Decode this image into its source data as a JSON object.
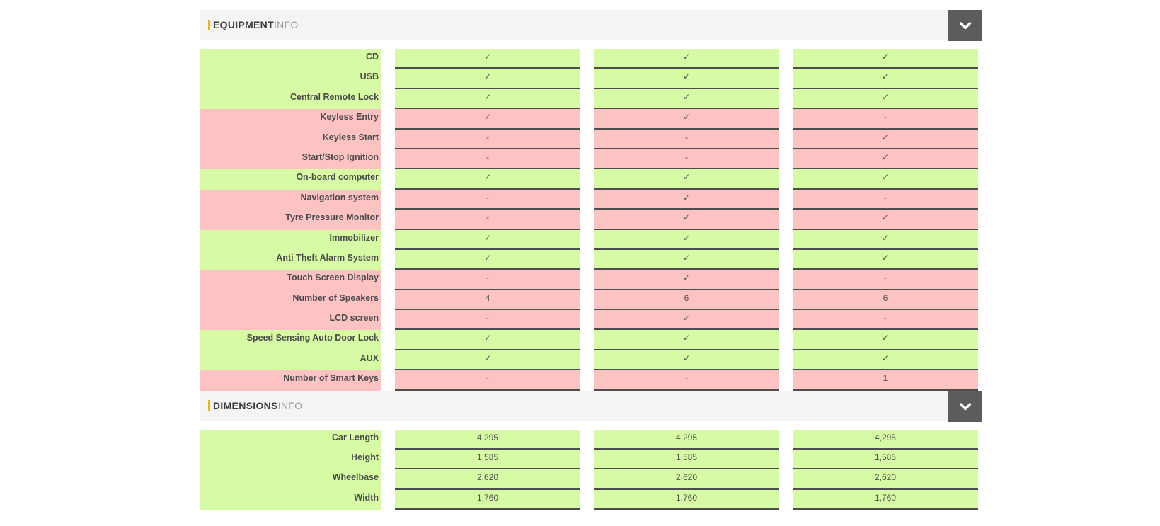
{
  "colors": {
    "match": "#d6fba4",
    "mismatch": "#fdc3c3",
    "header_bg": "#f4f4f4",
    "button_bg": "#5c5c5c",
    "accent": "#eeb211",
    "border": "#4d4d4d",
    "title_text": "#3b3b3b",
    "title_muted": "#9b9b9b",
    "label_text": "#4a4a4a",
    "value_text": "#4f4f4f"
  },
  "sections": [
    {
      "title_bold": "EQUIPMENT",
      "title_light": "INFO",
      "collapse_icon": "chevron-down",
      "rows": [
        {
          "label": "CD",
          "state": "match",
          "values": [
            "✓",
            "✓",
            "✓"
          ]
        },
        {
          "label": "USB",
          "state": "match",
          "values": [
            "✓",
            "✓",
            "✓"
          ]
        },
        {
          "label": "Central Remote Lock",
          "state": "match",
          "values": [
            "✓",
            "✓",
            "✓"
          ]
        },
        {
          "label": "Keyless Entry",
          "state": "mismatch",
          "values": [
            "✓",
            "✓",
            "-"
          ]
        },
        {
          "label": "Keyless Start",
          "state": "mismatch",
          "values": [
            "-",
            "-",
            "✓"
          ]
        },
        {
          "label": "Start/Stop Ignition",
          "state": "mismatch",
          "values": [
            "-",
            "-",
            "✓"
          ]
        },
        {
          "label": "On-board computer",
          "state": "match",
          "values": [
            "✓",
            "✓",
            "✓"
          ]
        },
        {
          "label": "Navigation system",
          "state": "mismatch",
          "values": [
            "-",
            "✓",
            "-"
          ]
        },
        {
          "label": "Tyre Pressure Monitor",
          "state": "mismatch",
          "values": [
            "-",
            "✓",
            "✓"
          ]
        },
        {
          "label": "Immobilizer",
          "state": "match",
          "values": [
            "✓",
            "✓",
            "✓"
          ]
        },
        {
          "label": "Anti Theft Alarm System",
          "state": "match",
          "values": [
            "✓",
            "✓",
            "✓"
          ]
        },
        {
          "label": "Touch Screen Display",
          "state": "mismatch",
          "values": [
            "-",
            "✓",
            "-"
          ]
        },
        {
          "label": "Number of Speakers",
          "state": "mismatch",
          "values": [
            "4",
            "6",
            "6"
          ]
        },
        {
          "label": "LCD screen",
          "state": "mismatch",
          "values": [
            "-",
            "✓",
            "-"
          ]
        },
        {
          "label": "Speed Sensing Auto Door Lock",
          "state": "match",
          "values": [
            "✓",
            "✓",
            "✓"
          ]
        },
        {
          "label": "AUX",
          "state": "match",
          "values": [
            "✓",
            "✓",
            "✓"
          ]
        },
        {
          "label": "Number of Smart Keys",
          "state": "mismatch",
          "values": [
            "-",
            "-",
            "1"
          ]
        }
      ]
    },
    {
      "title_bold": "DIMENSIONS",
      "title_light": "INFO",
      "collapse_icon": "chevron-down",
      "rows": [
        {
          "label": "Car Length",
          "state": "match",
          "values": [
            "4,295",
            "4,295",
            "4,295"
          ]
        },
        {
          "label": "Height",
          "state": "match",
          "values": [
            "1,585",
            "1,585",
            "1,585"
          ]
        },
        {
          "label": "Wheelbase",
          "state": "match",
          "values": [
            "2,620",
            "2,620",
            "2,620"
          ]
        },
        {
          "label": "Width",
          "state": "match",
          "values": [
            "1,760",
            "1,760",
            "1,760"
          ]
        }
      ]
    }
  ]
}
